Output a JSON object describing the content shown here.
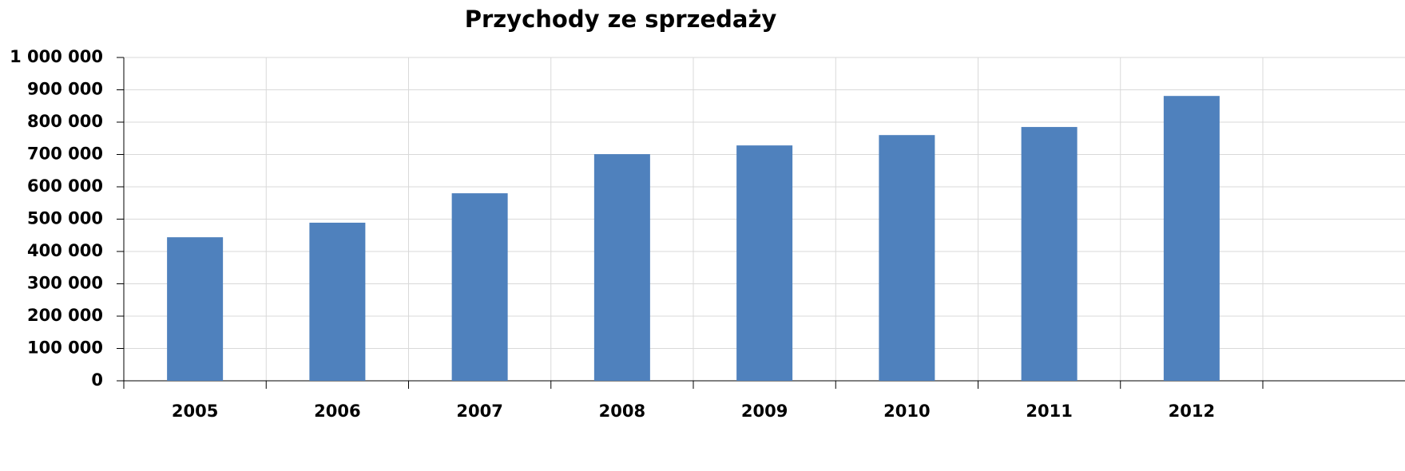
{
  "chart_data": {
    "type": "bar",
    "title": "Przychody ze sprzedaży",
    "categories": [
      "2005",
      "2006",
      "2007",
      "2008",
      "2009",
      "2010",
      "2011",
      "2012"
    ],
    "values": [
      444000,
      489000,
      580000,
      701000,
      728000,
      760000,
      785000,
      881000
    ],
    "color": "#4f81bd",
    "ylim": [
      0,
      1000000
    ],
    "yticks": [
      0,
      {
        "value": 100000,
        "label": "100 000"
      },
      {
        "value": 200000,
        "label": "200 000"
      },
      {
        "value": 300000,
        "label": "300 000"
      },
      {
        "value": 400000,
        "label": "400 000"
      },
      {
        "value": 500000,
        "label": "500 000"
      },
      {
        "value": 600000,
        "label": "600 000"
      },
      {
        "value": 700000,
        "label": "700 000"
      },
      {
        "value": 800000,
        "label": "800 000"
      },
      {
        "value": 900000,
        "label": "900 000"
      },
      {
        "value": 1000000,
        "label": "1 000 000"
      }
    ],
    "grid": true
  }
}
